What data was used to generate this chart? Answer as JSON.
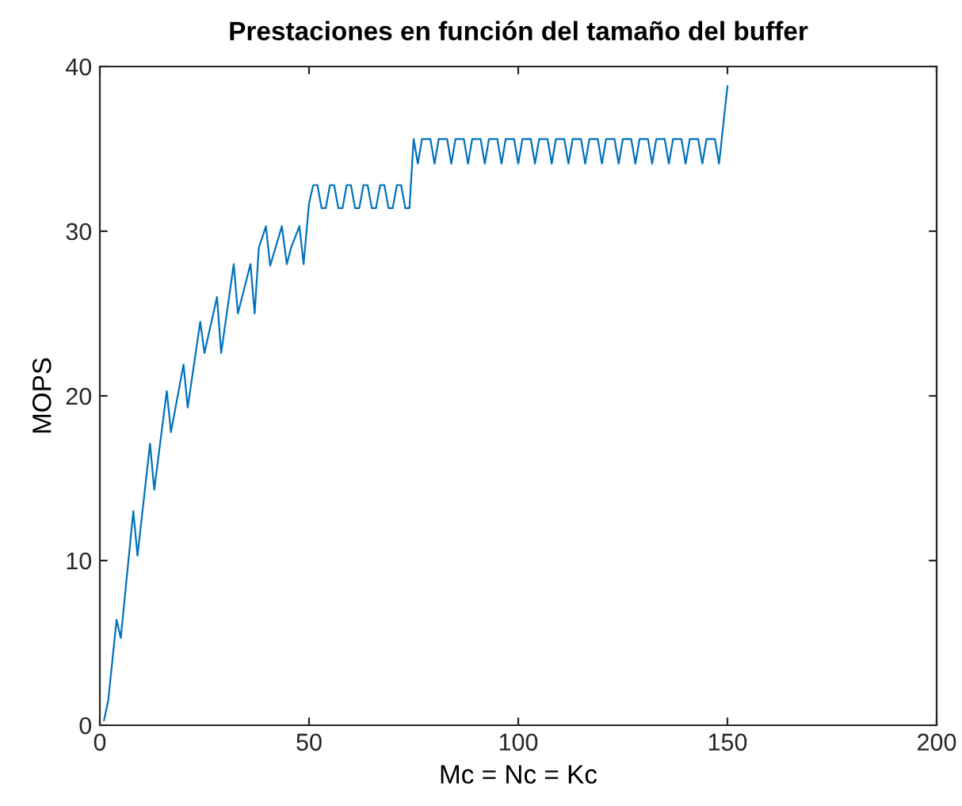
{
  "chart_data": {
    "type": "line",
    "title": "Prestaciones en función del tamaño del buffer",
    "xlabel": "Mc = Nc = Kc",
    "ylabel": "MOPS",
    "xlim": [
      0,
      200
    ],
    "xticks": [
      0,
      50,
      100,
      150,
      200
    ],
    "ylim": [
      0,
      40
    ],
    "yticks": [
      0,
      10,
      20,
      30,
      40
    ],
    "grid": false,
    "legend": false,
    "series": [
      {
        "color": "#0072bd",
        "x": [
          1,
          2,
          4,
          5,
          8,
          9,
          12,
          13,
          16,
          17,
          20,
          21,
          24,
          25,
          28,
          29,
          32,
          33,
          36,
          37,
          38,
          39.7,
          40.7,
          42,
          43.5,
          44.7,
          45.7,
          47.7,
          48.7,
          50,
          51,
          52,
          53,
          54,
          55,
          56,
          57,
          58,
          59,
          60,
          61,
          62,
          63,
          64,
          65,
          66,
          67,
          68,
          69,
          70,
          71,
          72,
          73,
          74,
          75,
          76,
          77,
          79,
          80,
          81,
          83,
          84,
          85,
          87,
          88,
          89,
          91,
          92,
          93,
          95,
          96,
          97,
          99,
          100,
          101,
          103,
          104,
          105,
          107,
          108,
          109,
          111,
          112,
          113,
          115,
          116,
          117,
          119,
          120,
          121,
          123,
          124,
          125,
          127,
          128,
          129,
          131,
          132,
          133,
          135,
          136,
          137,
          139,
          140,
          141,
          143,
          144,
          145,
          147,
          148,
          150
        ],
        "values": [
          0.3,
          1.5,
          6.4,
          5.3,
          13,
          10.3,
          17.1,
          14.3,
          20.3,
          17.8,
          21.9,
          19.3,
          24.5,
          22.6,
          26,
          22.6,
          28,
          25,
          28,
          25,
          29,
          30.3,
          27.9,
          29,
          30.3,
          28,
          29,
          30.3,
          28,
          31.7,
          32.8,
          32.8,
          31.4,
          31.4,
          32.8,
          32.8,
          31.4,
          31.4,
          32.8,
          32.8,
          31.4,
          31.4,
          32.8,
          32.8,
          31.4,
          31.4,
          32.8,
          32.8,
          31.4,
          31.4,
          32.8,
          32.8,
          31.4,
          31.4,
          35.6,
          34.1,
          35.6,
          35.6,
          34.1,
          35.6,
          35.6,
          34.1,
          35.6,
          35.6,
          34.1,
          35.6,
          35.6,
          34.1,
          35.6,
          35.6,
          34.1,
          35.6,
          35.6,
          34.1,
          35.6,
          35.6,
          34.1,
          35.6,
          35.6,
          34.1,
          35.6,
          35.6,
          34.1,
          35.6,
          35.6,
          34.1,
          35.6,
          35.6,
          34.1,
          35.6,
          35.6,
          34.1,
          35.6,
          35.6,
          34.1,
          35.6,
          35.6,
          34.1,
          35.6,
          35.6,
          34.1,
          35.6,
          35.6,
          34.1,
          35.6,
          35.6,
          34.1,
          35.6,
          35.6,
          34.1,
          38.8
        ]
      }
    ]
  }
}
